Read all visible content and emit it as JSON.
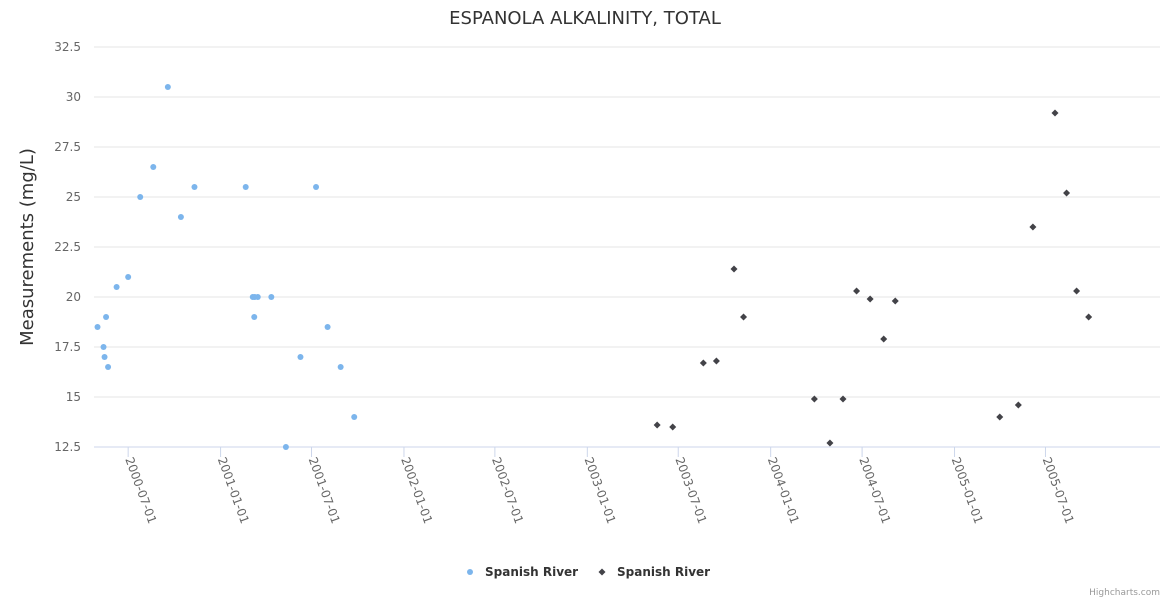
{
  "chart_data": {
    "type": "scatter",
    "title": "ESPANOLA ALKALINITY, TOTAL",
    "xlabel": "",
    "ylabel": "Measurements (mg/L)",
    "ylim": [
      12.5,
      32.5
    ],
    "yticks": [
      "12.5",
      "15",
      "17.5",
      "20",
      "22.5",
      "25",
      "27.5",
      "30",
      "32.5"
    ],
    "xlim": [
      "2000-04-24",
      "2006-02-14"
    ],
    "xticks": [
      "2000-07-01",
      "2001-01-01",
      "2001-07-01",
      "2002-01-01",
      "2002-07-01",
      "2003-01-01",
      "2003-07-01",
      "2004-01-01",
      "2004-07-01",
      "2005-01-01",
      "2005-07-01"
    ],
    "grid": true,
    "legend_position": "bottom-center",
    "series": [
      {
        "name": "Spanish River",
        "marker": "circle",
        "color": "#7cb5ec",
        "points": [
          {
            "x": "2000-05-01",
            "y": 18.5
          },
          {
            "x": "2000-05-13",
            "y": 17.5
          },
          {
            "x": "2000-05-15",
            "y": 17.0
          },
          {
            "x": "2000-05-18",
            "y": 19.0
          },
          {
            "x": "2000-05-22",
            "y": 16.5
          },
          {
            "x": "2000-06-08",
            "y": 20.5
          },
          {
            "x": "2000-07-01",
            "y": 21.0
          },
          {
            "x": "2000-07-25",
            "y": 25.0
          },
          {
            "x": "2000-08-20",
            "y": 26.5
          },
          {
            "x": "2000-09-18",
            "y": 30.5
          },
          {
            "x": "2000-10-14",
            "y": 24.0
          },
          {
            "x": "2000-11-10",
            "y": 25.5
          },
          {
            "x": "2001-02-20",
            "y": 25.5
          },
          {
            "x": "2001-03-06",
            "y": 20.0
          },
          {
            "x": "2001-03-09",
            "y": 19.0
          },
          {
            "x": "2001-03-10",
            "y": 20.0
          },
          {
            "x": "2001-03-16",
            "y": 20.0
          },
          {
            "x": "2001-04-12",
            "y": 20.0
          },
          {
            "x": "2001-05-11",
            "y": 12.5
          },
          {
            "x": "2001-06-09",
            "y": 17.0
          },
          {
            "x": "2001-07-10",
            "y": 25.5
          },
          {
            "x": "2001-08-02",
            "y": 18.5
          },
          {
            "x": "2001-08-28",
            "y": 16.5
          },
          {
            "x": "2001-09-24",
            "y": 14.0
          }
        ]
      },
      {
        "name": "Spanish River",
        "marker": "diamond",
        "color": "#434348",
        "points": [
          {
            "x": "2003-05-20",
            "y": 13.6
          },
          {
            "x": "2003-06-20",
            "y": 13.5
          },
          {
            "x": "2003-08-20",
            "y": 16.7
          },
          {
            "x": "2003-09-15",
            "y": 16.8
          },
          {
            "x": "2003-10-20",
            "y": 21.4
          },
          {
            "x": "2003-11-08",
            "y": 19.0
          },
          {
            "x": "2004-03-28",
            "y": 14.9
          },
          {
            "x": "2004-04-28",
            "y": 12.7
          },
          {
            "x": "2004-05-24",
            "y": 14.9
          },
          {
            "x": "2004-06-20",
            "y": 20.3
          },
          {
            "x": "2004-07-17",
            "y": 19.9
          },
          {
            "x": "2004-08-13",
            "y": 17.9
          },
          {
            "x": "2004-09-05",
            "y": 19.8
          },
          {
            "x": "2005-04-01",
            "y": 14.0
          },
          {
            "x": "2005-05-08",
            "y": 14.6
          },
          {
            "x": "2005-06-06",
            "y": 23.5
          },
          {
            "x": "2005-07-20",
            "y": 29.2
          },
          {
            "x": "2005-08-12",
            "y": 25.2
          },
          {
            "x": "2005-09-01",
            "y": 20.3
          },
          {
            "x": "2005-09-25",
            "y": 19.0
          }
        ]
      }
    ]
  },
  "credits": "Highcharts.com"
}
